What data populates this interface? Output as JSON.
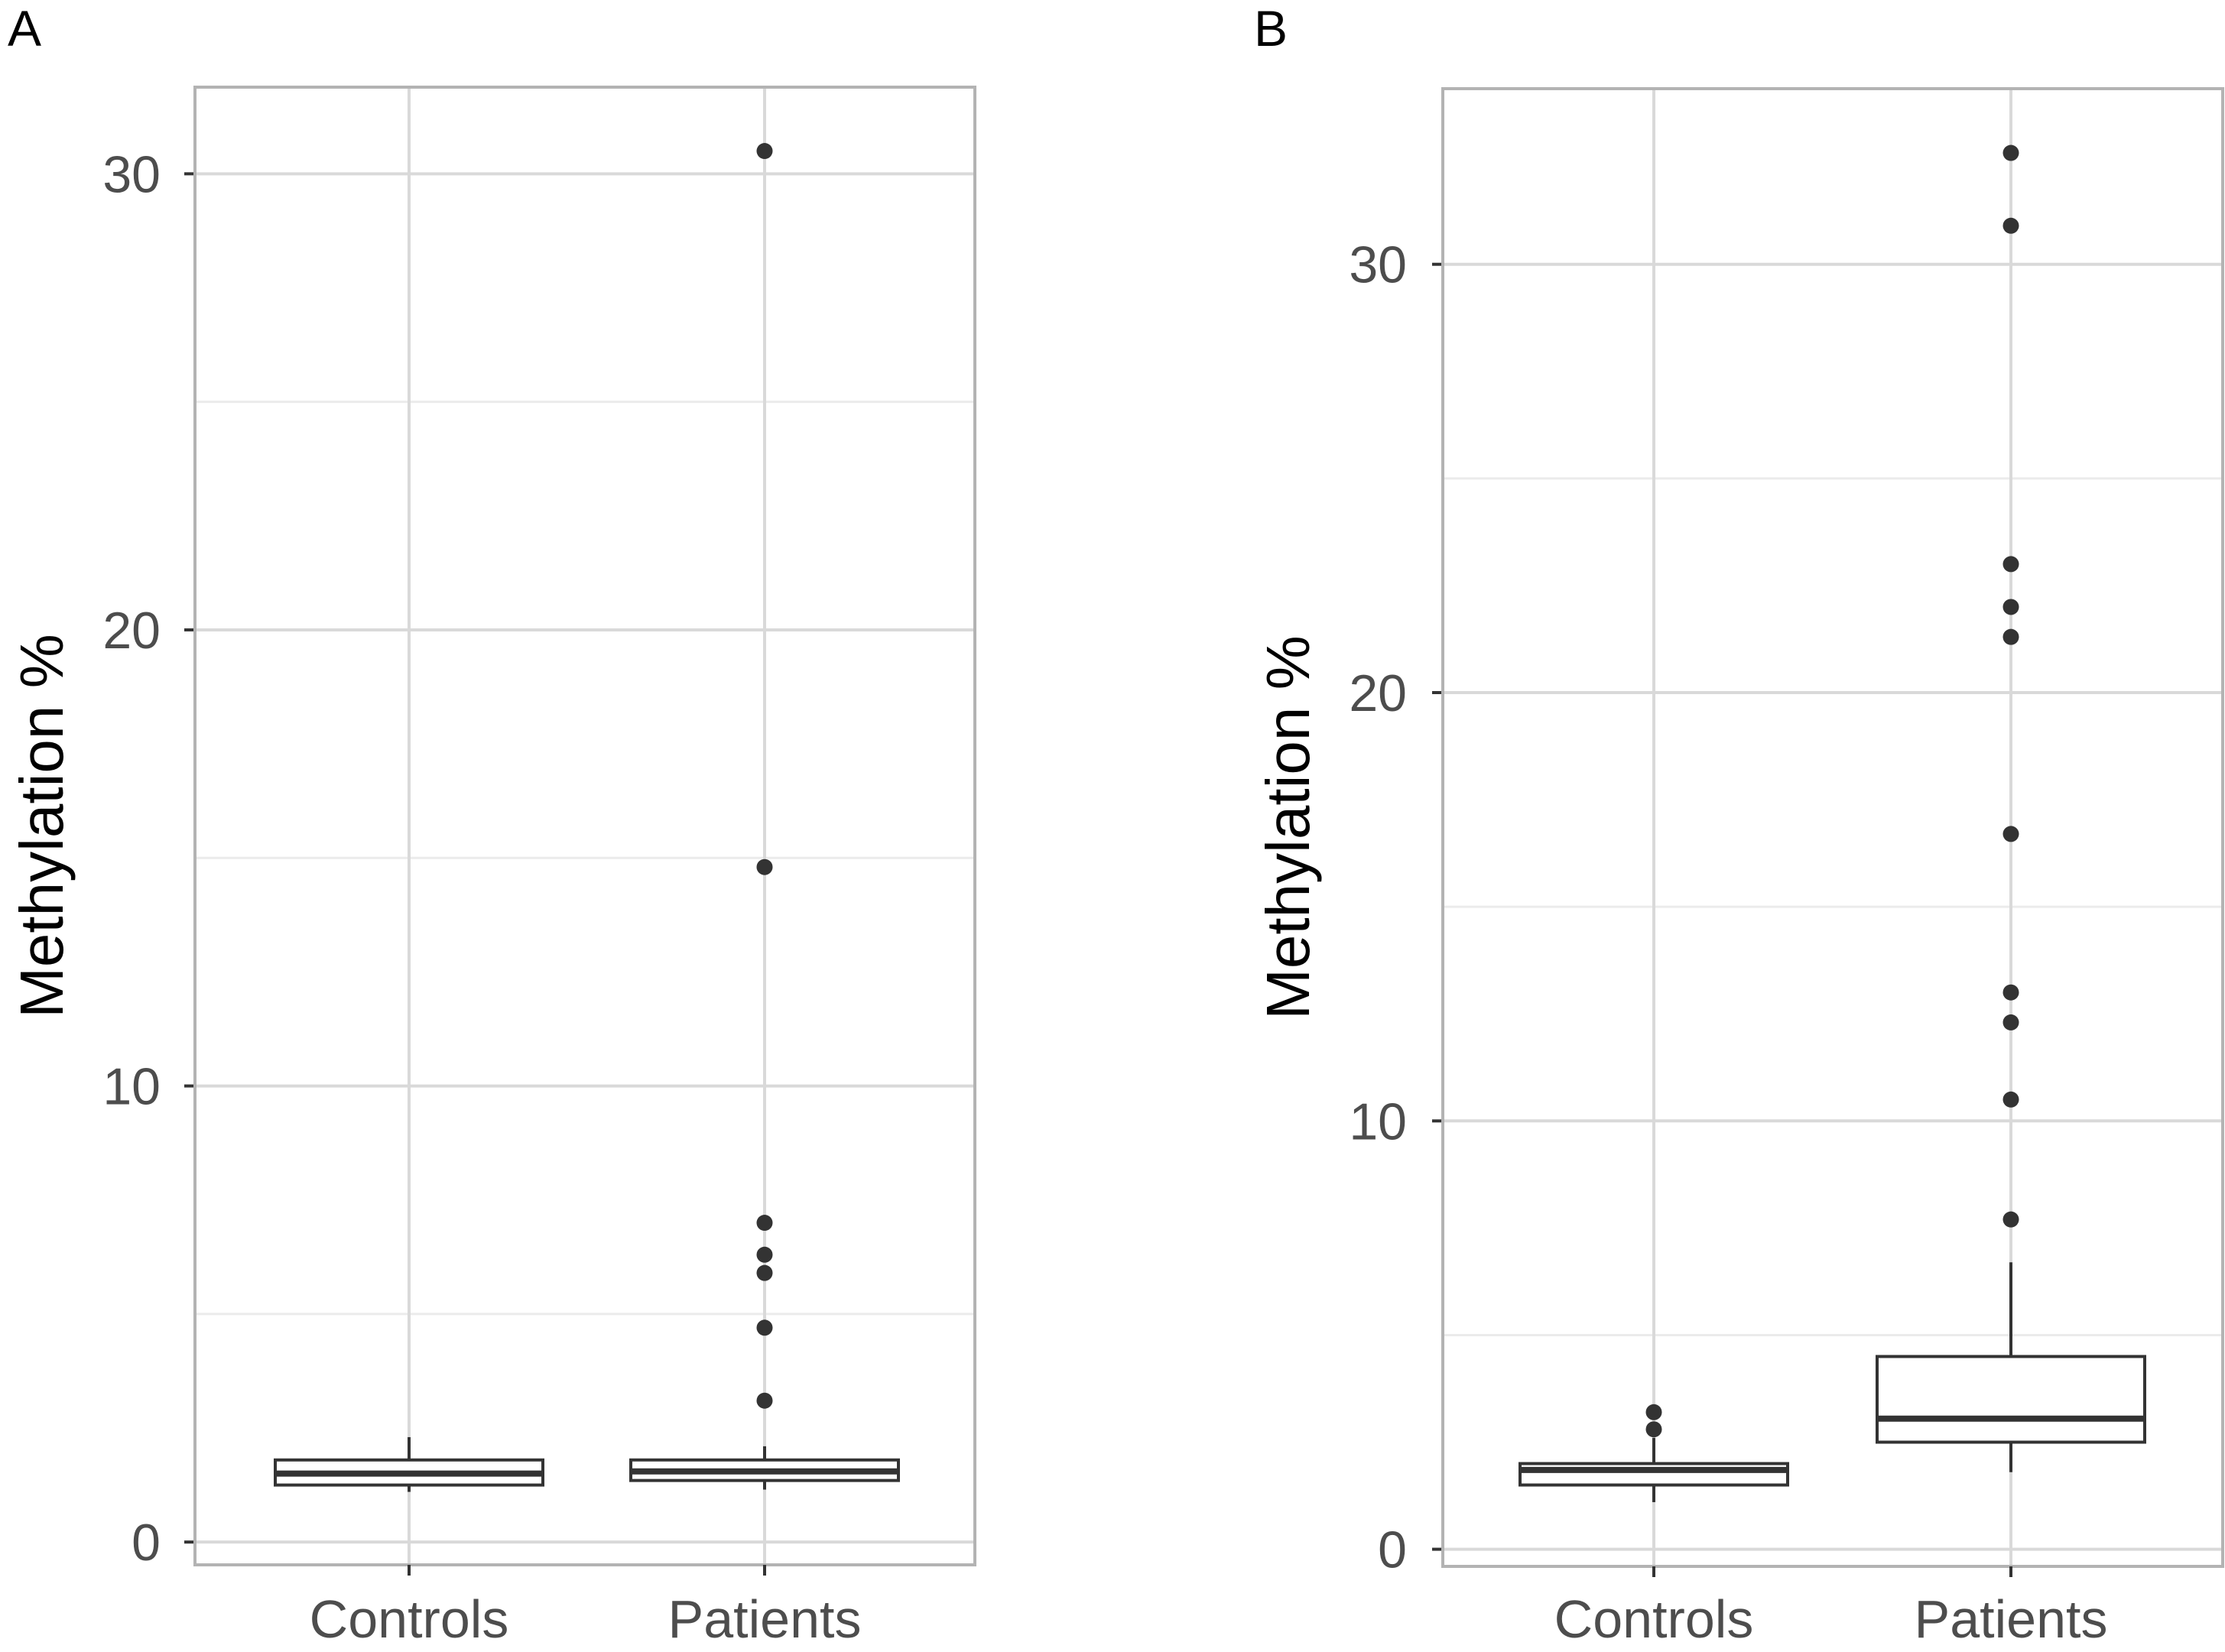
{
  "chart_data": [
    {
      "panel_label": "A",
      "type": "boxplot",
      "title": "",
      "xlabel": "",
      "ylabel": "Methylation %",
      "ylim": [
        -0.5,
        31.9
      ],
      "yticks": [
        0,
        10,
        20,
        30
      ],
      "ytick_labels": [
        "0",
        "10",
        "20",
        "30"
      ],
      "categories": [
        "Controls",
        "Patients"
      ],
      "grid": true,
      "boxes": [
        {
          "category": "Controls",
          "whisker_low": 1.1,
          "q1": 1.25,
          "median": 1.5,
          "q3": 1.8,
          "whisker_high": 2.3,
          "outliers": []
        },
        {
          "category": "Patients",
          "whisker_low": 1.15,
          "q1": 1.35,
          "median": 1.55,
          "q3": 1.8,
          "whisker_high": 2.1,
          "outliers": [
            3.1,
            4.7,
            5.9,
            6.3,
            7.0,
            14.8,
            30.5
          ]
        }
      ]
    },
    {
      "panel_label": "B",
      "type": "boxplot",
      "title": "",
      "xlabel": "",
      "ylabel": "Methylation %",
      "ylim": [
        -0.4,
        34.1
      ],
      "yticks": [
        0,
        10,
        20,
        30
      ],
      "ytick_labels": [
        "0",
        "10",
        "20",
        "30"
      ],
      "categories": [
        "Controls",
        "Patients"
      ],
      "grid": true,
      "boxes": [
        {
          "category": "Controls",
          "whisker_low": 1.1,
          "q1": 1.5,
          "median": 1.85,
          "q3": 2.0,
          "whisker_high": 2.6,
          "outliers": [
            2.8,
            3.2
          ]
        },
        {
          "category": "Patients",
          "whisker_low": 1.8,
          "q1": 2.5,
          "median": 3.05,
          "q3": 4.5,
          "whisker_high": 6.7,
          "outliers": [
            7.7,
            10.5,
            12.3,
            13.0,
            16.7,
            21.3,
            22.0,
            23.0,
            30.9,
            32.6
          ]
        }
      ]
    }
  ]
}
